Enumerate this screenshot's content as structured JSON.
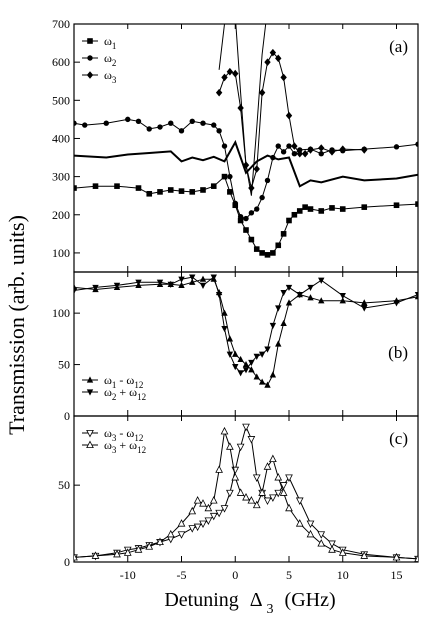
{
  "figure": {
    "ylabel": "Transmission (arb. units)",
    "xlabel_main": "Detuning",
    "xlabel_symbol": "Δ",
    "xlabel_sub": "3",
    "xlabel_unit": "(GHz)"
  },
  "chart_data": [
    {
      "type": "line",
      "panel_label": "(a)",
      "xlim": [
        -15,
        17
      ],
      "ylim": [
        50,
        700
      ],
      "x_ticks": [
        -10,
        -5,
        0,
        5,
        10,
        15
      ],
      "y_ticks": [
        100,
        200,
        300,
        400,
        500,
        600,
        700
      ],
      "legend_position": "top-left",
      "legend": [
        {
          "sym": "ω",
          "sub": "1",
          "marker": "square"
        },
        {
          "sym": "ω",
          "sub": "2",
          "marker": "circle"
        },
        {
          "sym": "ω",
          "sub": "3",
          "marker": "diamond"
        }
      ],
      "series": [
        {
          "marker": "none",
          "stroke_width": 2,
          "x": [
            -15,
            -12,
            -10,
            -8,
            -6,
            -5,
            -4,
            -3,
            -2,
            -1,
            0,
            1,
            2,
            3,
            4,
            5,
            6,
            7,
            8,
            10,
            12,
            15,
            17
          ],
          "y": [
            355,
            350,
            358,
            362,
            366,
            340,
            350,
            343,
            352,
            340,
            390,
            310,
            340,
            355,
            345,
            350,
            275,
            290,
            285,
            300,
            290,
            295,
            305
          ]
        },
        {
          "marker": "square",
          "x": [
            -15,
            -13,
            -11,
            -9,
            -8,
            -7,
            -6,
            -5,
            -4,
            -3,
            -2,
            -1,
            -0.5,
            0,
            0.5,
            1,
            1.5,
            2,
            2.5,
            3,
            3.5,
            4,
            4.5,
            5,
            5.5,
            6,
            6.5,
            7,
            8,
            9,
            10,
            12,
            15,
            17
          ],
          "y": [
            270,
            275,
            275,
            270,
            255,
            260,
            265,
            262,
            260,
            265,
            275,
            300,
            260,
            225,
            185,
            160,
            135,
            110,
            100,
            95,
            100,
            120,
            150,
            185,
            200,
            210,
            220,
            215,
            210,
            218,
            215,
            220,
            225,
            228
          ]
        },
        {
          "marker": "circle",
          "x": [
            -15,
            -14,
            -12,
            -10,
            -9,
            -8,
            -7,
            -6,
            -5,
            -4,
            -3,
            -2,
            -1.5,
            -1,
            -0.5,
            0,
            0.5,
            1,
            1.5,
            2,
            2.5,
            3,
            3.5,
            4,
            4.5,
            5,
            5.5,
            6,
            7,
            8,
            9,
            10,
            12,
            15,
            17
          ],
          "y": [
            440,
            435,
            440,
            450,
            445,
            425,
            430,
            440,
            420,
            445,
            440,
            435,
            420,
            380,
            300,
            230,
            195,
            190,
            205,
            215,
            245,
            290,
            350,
            380,
            365,
            380,
            360,
            370,
            372,
            360,
            370,
            368,
            372,
            378,
            385
          ]
        },
        {
          "marker": "diamond",
          "x": [
            -1.5,
            -1,
            -0.5,
            0,
            0.5,
            1,
            1.5,
            2,
            2.5,
            3,
            3.5,
            4,
            4.5,
            5,
            5.5,
            6,
            6.5,
            7,
            8,
            9,
            10,
            12
          ],
          "y": [
            520,
            560,
            575,
            570,
            480,
            330,
            270,
            320,
            520,
            600,
            625,
            610,
            560,
            460,
            380,
            360,
            360,
            370,
            375,
            365,
            372,
            370
          ]
        },
        {
          "marker": "none",
          "stroke_width": 1,
          "x": [
            -1.5,
            -1,
            -0.5,
            0,
            0.5,
            1,
            1.5,
            2,
            2.5,
            3
          ],
          "y": [
            580,
            700,
            760,
            720,
            520,
            330,
            250,
            430,
            620,
            740
          ]
        }
      ]
    },
    {
      "type": "line",
      "panel_label": "(b)",
      "xlim": [
        -15,
        17
      ],
      "ylim": [
        0,
        140
      ],
      "x_ticks": [
        -10,
        -5,
        0,
        5,
        10,
        15
      ],
      "y_ticks": [
        0,
        50,
        100
      ],
      "legend_position": "bottom-left",
      "legend": [
        {
          "sym": "ω",
          "sub": "1",
          "mid": " - ω",
          "sub2": "12",
          "marker": "tri-up"
        },
        {
          "sym": "ω",
          "sub": "2",
          "mid": " + ω",
          "sub2": "12",
          "marker": "tri-down"
        }
      ],
      "series": [
        {
          "marker": "tri-up",
          "x": [
            -15,
            -13,
            -11,
            -9,
            -7,
            -6,
            -5,
            -4,
            -3,
            -2,
            -1.5,
            -1,
            -0.5,
            0,
            0.5,
            1,
            1.5,
            2,
            2.5,
            3,
            3.5,
            4,
            4.5,
            5,
            6,
            7,
            8,
            10,
            12,
            15,
            17
          ],
          "y": [
            125,
            123,
            125,
            127,
            128,
            128,
            127,
            130,
            133,
            133,
            120,
            100,
            75,
            60,
            55,
            50,
            45,
            38,
            33,
            30,
            40,
            70,
            90,
            110,
            118,
            115,
            112,
            112,
            110,
            112,
            116
          ]
        },
        {
          "marker": "tri-down",
          "x": [
            -15,
            -13,
            -11,
            -9,
            -7,
            -6,
            -5,
            -4,
            -3,
            -2,
            -1.5,
            -1,
            -0.5,
            0,
            0.5,
            1,
            1.5,
            2,
            2.5,
            3,
            3.5,
            4,
            4.5,
            5,
            6,
            7,
            8,
            10,
            12,
            15,
            17
          ],
          "y": [
            122,
            125,
            127,
            130,
            130,
            128,
            133,
            135,
            127,
            135,
            118,
            85,
            60,
            48,
            42,
            45,
            52,
            58,
            60,
            65,
            88,
            105,
            120,
            125,
            118,
            125,
            132,
            117,
            105,
            110,
            118
          ]
        }
      ]
    },
    {
      "type": "line",
      "panel_label": "(c)",
      "xlim": [
        -15,
        17
      ],
      "ylim": [
        0,
        95
      ],
      "x_ticks": [
        -10,
        -5,
        0,
        5,
        10,
        15
      ],
      "y_ticks": [
        0,
        50
      ],
      "legend_position": "top-left",
      "legend": [
        {
          "sym": "ω",
          "sub": "3",
          "mid": " - ω",
          "sub2": "12",
          "marker": "tri-down-open"
        },
        {
          "sym": "ω",
          "sub": "3",
          "mid": " + ω",
          "sub2": "12",
          "marker": "tri-up-open"
        }
      ],
      "series": [
        {
          "marker": "tri-down-open",
          "x": [
            -15,
            -13,
            -11,
            -10,
            -9,
            -8,
            -7,
            -6,
            -5,
            -4,
            -3.5,
            -3,
            -2.5,
            -2,
            -1.5,
            -1,
            -0.5,
            0,
            0.5,
            1,
            1.5,
            2,
            2.5,
            3,
            3.5,
            4,
            4.5,
            5,
            6,
            7,
            8,
            9,
            10,
            12,
            15,
            17
          ],
          "y": [
            3,
            4,
            6,
            8,
            9,
            11,
            13,
            15,
            18,
            22,
            23,
            25,
            27,
            30,
            32,
            35,
            45,
            60,
            75,
            88,
            80,
            55,
            45,
            40,
            42,
            45,
            50,
            55,
            40,
            25,
            18,
            12,
            8,
            5,
            3,
            2
          ]
        },
        {
          "marker": "tri-up-open",
          "x": [
            -15,
            -13,
            -11,
            -10,
            -9,
            -8,
            -7,
            -6,
            -5,
            -4,
            -3.5,
            -3,
            -2.5,
            -2,
            -1.5,
            -1,
            -0.5,
            0,
            0.5,
            1,
            1.5,
            2,
            2.5,
            3,
            3.5,
            4,
            4.5,
            5,
            6,
            7,
            8,
            9,
            10,
            12,
            15,
            17
          ],
          "y": [
            3,
            4,
            5,
            6,
            8,
            10,
            13,
            18,
            25,
            33,
            40,
            38,
            35,
            40,
            60,
            85,
            75,
            55,
            45,
            42,
            40,
            37,
            45,
            62,
            67,
            55,
            45,
            35,
            25,
            18,
            12,
            8,
            6,
            4,
            3,
            2
          ]
        }
      ]
    }
  ]
}
